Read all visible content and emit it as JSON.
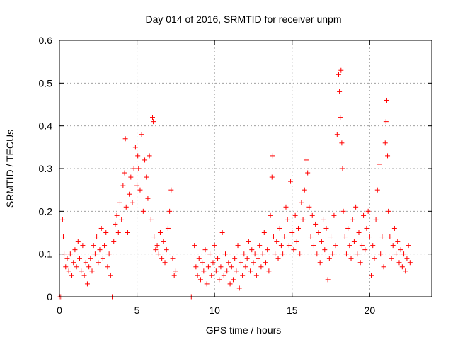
{
  "chart_data": {
    "type": "scatter",
    "title": "Day 014 of 2016, SRMTID for receiver unpm",
    "xlabel": "GPS time / hours",
    "ylabel": "SRMTID / TECUs",
    "xlim": [
      0,
      24
    ],
    "ylim": [
      0,
      0.6
    ],
    "xticks": [
      0,
      5,
      10,
      15,
      20
    ],
    "xtick_labels": [
      "0",
      "5",
      "10",
      "15",
      "20"
    ],
    "yticks": [
      0,
      0.1,
      0.2,
      0.3,
      0.4,
      0.5,
      0.6
    ],
    "ytick_labels": [
      "0",
      "0.1",
      "0.2",
      "0.3",
      "0.4",
      "0.5",
      "0.6"
    ],
    "grid": true,
    "marker": "+",
    "color": "#ff0000",
    "series": [
      {
        "name": "SRMTID",
        "points": [
          [
            0.05,
            0.0
          ],
          [
            0.15,
            0.0
          ],
          [
            0.2,
            0.18
          ],
          [
            0.25,
            0.14
          ],
          [
            0.3,
            0.1
          ],
          [
            0.4,
            0.07
          ],
          [
            0.5,
            0.09
          ],
          [
            0.6,
            0.06
          ],
          [
            0.7,
            0.1
          ],
          [
            0.8,
            0.05
          ],
          [
            0.9,
            0.08
          ],
          [
            1.0,
            0.11
          ],
          [
            1.1,
            0.07
          ],
          [
            1.2,
            0.13
          ],
          [
            1.3,
            0.09
          ],
          [
            1.4,
            0.06
          ],
          [
            1.5,
            0.12
          ],
          [
            1.6,
            0.05
          ],
          [
            1.7,
            0.08
          ],
          [
            1.8,
            0.03
          ],
          [
            1.9,
            0.07
          ],
          [
            2.0,
            0.09
          ],
          [
            2.1,
            0.06
          ],
          [
            2.2,
            0.12
          ],
          [
            2.3,
            0.1
          ],
          [
            2.4,
            0.14
          ],
          [
            2.5,
            0.08
          ],
          [
            2.6,
            0.11
          ],
          [
            2.7,
            0.16
          ],
          [
            2.8,
            0.09
          ],
          [
            2.9,
            0.12
          ],
          [
            3.0,
            0.15
          ],
          [
            3.1,
            0.07
          ],
          [
            3.2,
            0.1
          ],
          [
            3.3,
            0.05
          ],
          [
            3.4,
            0.0
          ],
          [
            3.5,
            0.13
          ],
          [
            3.6,
            0.17
          ],
          [
            3.7,
            0.19
          ],
          [
            3.8,
            0.15
          ],
          [
            3.9,
            0.22
          ],
          [
            4.0,
            0.18
          ],
          [
            4.1,
            0.26
          ],
          [
            4.2,
            0.29
          ],
          [
            4.25,
            0.37
          ],
          [
            4.3,
            0.21
          ],
          [
            4.4,
            0.15
          ],
          [
            4.5,
            0.24
          ],
          [
            4.6,
            0.28
          ],
          [
            4.7,
            0.22
          ],
          [
            4.8,
            0.3
          ],
          [
            4.9,
            0.35
          ],
          [
            5.0,
            0.26
          ],
          [
            5.05,
            0.33
          ],
          [
            5.1,
            0.3
          ],
          [
            5.2,
            0.25
          ],
          [
            5.3,
            0.38
          ],
          [
            5.4,
            0.2
          ],
          [
            5.5,
            0.32
          ],
          [
            5.6,
            0.28
          ],
          [
            5.7,
            0.23
          ],
          [
            5.8,
            0.33
          ],
          [
            5.9,
            0.18
          ],
          [
            6.0,
            0.42
          ],
          [
            6.05,
            0.41
          ],
          [
            6.1,
            0.14
          ],
          [
            6.2,
            0.11
          ],
          [
            6.3,
            0.12
          ],
          [
            6.4,
            0.1
          ],
          [
            6.5,
            0.15
          ],
          [
            6.6,
            0.09
          ],
          [
            6.7,
            0.13
          ],
          [
            6.8,
            0.08
          ],
          [
            6.9,
            0.11
          ],
          [
            7.0,
            0.16
          ],
          [
            7.1,
            0.2
          ],
          [
            7.2,
            0.25
          ],
          [
            7.3,
            0.09
          ],
          [
            7.4,
            0.05
          ],
          [
            7.5,
            0.06
          ],
          [
            8.5,
            0.0
          ],
          [
            8.7,
            0.12
          ],
          [
            8.8,
            0.07
          ],
          [
            8.9,
            0.05
          ],
          [
            9.0,
            0.09
          ],
          [
            9.1,
            0.04
          ],
          [
            9.2,
            0.08
          ],
          [
            9.3,
            0.06
          ],
          [
            9.4,
            0.11
          ],
          [
            9.5,
            0.03
          ],
          [
            9.6,
            0.07
          ],
          [
            9.7,
            0.1
          ],
          [
            9.8,
            0.05
          ],
          [
            9.9,
            0.08
          ],
          [
            10.0,
            0.12
          ],
          [
            10.1,
            0.06
          ],
          [
            10.2,
            0.09
          ],
          [
            10.3,
            0.04
          ],
          [
            10.4,
            0.07
          ],
          [
            10.5,
            0.15
          ],
          [
            10.6,
            0.05
          ],
          [
            10.7,
            0.1
          ],
          [
            10.8,
            0.06
          ],
          [
            10.9,
            0.08
          ],
          [
            11.0,
            0.03
          ],
          [
            11.1,
            0.07
          ],
          [
            11.2,
            0.04
          ],
          [
            11.3,
            0.09
          ],
          [
            11.4,
            0.06
          ],
          [
            11.5,
            0.12
          ],
          [
            11.6,
            0.02
          ],
          [
            11.7,
            0.08
          ],
          [
            11.8,
            0.05
          ],
          [
            11.9,
            0.1
          ],
          [
            12.0,
            0.07
          ],
          [
            12.1,
            0.09
          ],
          [
            12.2,
            0.13
          ],
          [
            12.3,
            0.06
          ],
          [
            12.4,
            0.11
          ],
          [
            12.5,
            0.08
          ],
          [
            12.6,
            0.1
          ],
          [
            12.7,
            0.05
          ],
          [
            12.8,
            0.09
          ],
          [
            12.9,
            0.12
          ],
          [
            13.0,
            0.07
          ],
          [
            13.1,
            0.1
          ],
          [
            13.2,
            0.15
          ],
          [
            13.3,
            0.08
          ],
          [
            13.4,
            0.11
          ],
          [
            13.5,
            0.06
          ],
          [
            13.6,
            0.19
          ],
          [
            13.7,
            0.28
          ],
          [
            13.75,
            0.33
          ],
          [
            13.8,
            0.14
          ],
          [
            13.9,
            0.1
          ],
          [
            14.0,
            0.13
          ],
          [
            14.1,
            0.09
          ],
          [
            14.2,
            0.16
          ],
          [
            14.3,
            0.12
          ],
          [
            14.4,
            0.1
          ],
          [
            14.5,
            0.14
          ],
          [
            14.6,
            0.21
          ],
          [
            14.7,
            0.18
          ],
          [
            14.8,
            0.12
          ],
          [
            14.9,
            0.27
          ],
          [
            15.0,
            0.15
          ],
          [
            15.1,
            0.11
          ],
          [
            15.2,
            0.19
          ],
          [
            15.3,
            0.13
          ],
          [
            15.4,
            0.16
          ],
          [
            15.5,
            0.1
          ],
          [
            15.6,
            0.22
          ],
          [
            15.7,
            0.18
          ],
          [
            15.8,
            0.25
          ],
          [
            15.9,
            0.32
          ],
          [
            16.0,
            0.29
          ],
          [
            16.1,
            0.21
          ],
          [
            16.2,
            0.14
          ],
          [
            16.3,
            0.19
          ],
          [
            16.4,
            0.12
          ],
          [
            16.5,
            0.17
          ],
          [
            16.6,
            0.1
          ],
          [
            16.7,
            0.15
          ],
          [
            16.8,
            0.08
          ],
          [
            16.9,
            0.13
          ],
          [
            17.0,
            0.18
          ],
          [
            17.1,
            0.11
          ],
          [
            17.2,
            0.16
          ],
          [
            17.3,
            0.04
          ],
          [
            17.4,
            0.09
          ],
          [
            17.5,
            0.14
          ],
          [
            17.6,
            0.1
          ],
          [
            17.7,
            0.19
          ],
          [
            17.8,
            0.12
          ],
          [
            17.9,
            0.38
          ],
          [
            18.0,
            0.52
          ],
          [
            18.05,
            0.48
          ],
          [
            18.1,
            0.42
          ],
          [
            18.15,
            0.53
          ],
          [
            18.2,
            0.36
          ],
          [
            18.25,
            0.3
          ],
          [
            18.3,
            0.2
          ],
          [
            18.4,
            0.14
          ],
          [
            18.5,
            0.1
          ],
          [
            18.6,
            0.16
          ],
          [
            18.7,
            0.12
          ],
          [
            18.8,
            0.09
          ],
          [
            18.9,
            0.18
          ],
          [
            19.0,
            0.13
          ],
          [
            19.1,
            0.21
          ],
          [
            19.2,
            0.1
          ],
          [
            19.3,
            0.15
          ],
          [
            19.4,
            0.08
          ],
          [
            19.5,
            0.12
          ],
          [
            19.6,
            0.19
          ],
          [
            19.7,
            0.11
          ],
          [
            19.8,
            0.16
          ],
          [
            19.9,
            0.2
          ],
          [
            20.0,
            0.14
          ],
          [
            20.1,
            0.05
          ],
          [
            20.2,
            0.12
          ],
          [
            20.3,
            0.09
          ],
          [
            20.4,
            0.18
          ],
          [
            20.5,
            0.25
          ],
          [
            20.6,
            0.31
          ],
          [
            20.7,
            0.1
          ],
          [
            20.8,
            0.14
          ],
          [
            20.9,
            0.07
          ],
          [
            21.0,
            0.36
          ],
          [
            21.05,
            0.41
          ],
          [
            21.1,
            0.46
          ],
          [
            21.15,
            0.33
          ],
          [
            21.2,
            0.2
          ],
          [
            21.3,
            0.14
          ],
          [
            21.4,
            0.09
          ],
          [
            21.5,
            0.12
          ],
          [
            21.6,
            0.16
          ],
          [
            21.7,
            0.1
          ],
          [
            21.8,
            0.13
          ],
          [
            21.9,
            0.08
          ],
          [
            22.0,
            0.11
          ],
          [
            22.1,
            0.07
          ],
          [
            22.2,
            0.1
          ],
          [
            22.3,
            0.06
          ],
          [
            22.4,
            0.09
          ],
          [
            22.5,
            0.12
          ],
          [
            22.6,
            0.08
          ]
        ]
      }
    ]
  }
}
